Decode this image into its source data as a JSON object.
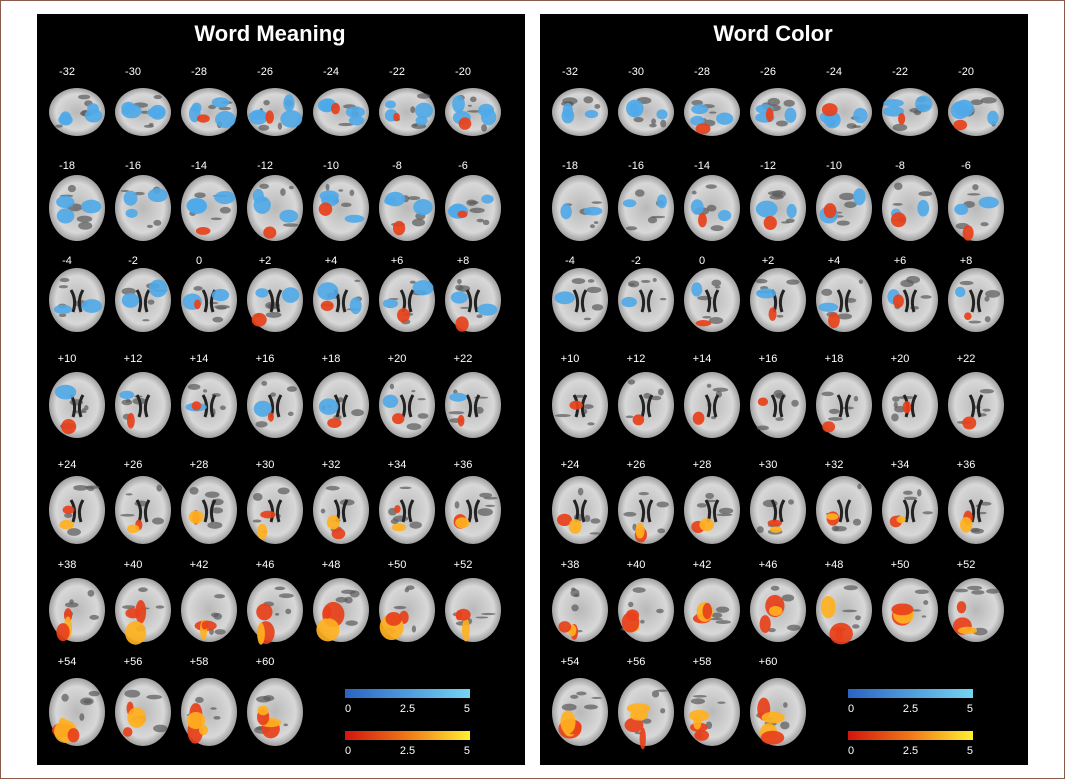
{
  "panels": [
    {
      "title": "Word Meaning",
      "slices": [
        [
          "-32",
          "-30",
          "-28",
          "-26",
          "-24",
          "-22",
          "-20"
        ],
        [
          "-18",
          "-16",
          "-14",
          "-12",
          "-10",
          "-8",
          "-6"
        ],
        [
          "-4",
          "-2",
          "0",
          "+2",
          "+4",
          "+6",
          "+8"
        ],
        [
          "+10",
          "+12",
          "+14",
          "+16",
          "+18",
          "+20",
          "+22"
        ],
        [
          "+24",
          "+26",
          "+28",
          "+30",
          "+32",
          "+34",
          "+36"
        ],
        [
          "+38",
          "+40",
          "+42",
          "+46",
          "+48",
          "+50",
          "+52"
        ],
        [
          "+54",
          "+56",
          "+58",
          "+60"
        ]
      ],
      "colorbars": [
        {
          "ticks": [
            "0",
            "2.5",
            "5"
          ]
        },
        {
          "ticks": [
            "0",
            "2.5",
            "5"
          ]
        }
      ]
    },
    {
      "title": "Word Color",
      "slices": [
        [
          "-32",
          "-30",
          "-28",
          "-26",
          "-24",
          "-22",
          "-20"
        ],
        [
          "-18",
          "-16",
          "-14",
          "-12",
          "-10",
          "-8",
          "-6"
        ],
        [
          "-4",
          "-2",
          "0",
          "+2",
          "+4",
          "+6",
          "+8"
        ],
        [
          "+10",
          "+12",
          "+14",
          "+16",
          "+18",
          "+20",
          "+22"
        ],
        [
          "+24",
          "+26",
          "+28",
          "+30",
          "+32",
          "+34",
          "+36"
        ],
        [
          "+38",
          "+40",
          "+42",
          "+46",
          "+48",
          "+50",
          "+52"
        ],
        [
          "+54",
          "+56",
          "+58",
          "+60"
        ]
      ],
      "colorbars": [
        {
          "ticks": [
            "0",
            "2.5",
            "5"
          ]
        },
        {
          "ticks": [
            "0",
            "2.5",
            "5"
          ]
        }
      ]
    }
  ]
}
